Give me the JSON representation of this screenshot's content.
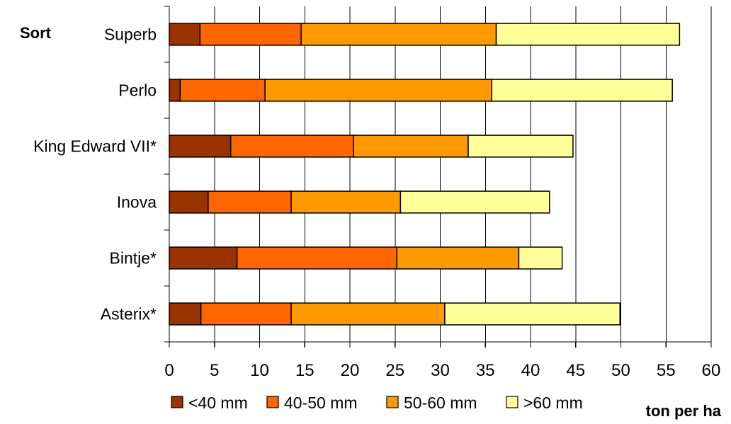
{
  "chart_data": {
    "type": "bar",
    "orientation": "horizontal",
    "stacked": true,
    "ylabel": "Sort",
    "xlabel": "ton per ha",
    "xlim": [
      0,
      60
    ],
    "xticks": [
      "0",
      "5",
      "10",
      "15",
      "20",
      "25",
      "30",
      "35",
      "40",
      "45",
      "50",
      "55",
      "60"
    ],
    "categories": [
      "Superb",
      "Perlo",
      "King Edward VII*",
      "Inova",
      "Bintje*",
      "Asterix*"
    ],
    "series": [
      {
        "name": "<40 mm",
        "color": "#993300",
        "values": [
          3.4,
          1.2,
          6.8,
          4.3,
          7.5,
          3.5
        ]
      },
      {
        "name": "40-50 mm",
        "color": "#ff6600",
        "values": [
          11.2,
          9.4,
          13.6,
          9.2,
          17.7,
          10.0
        ]
      },
      {
        "name": "50-60 mm",
        "color": "#ff9900",
        "values": [
          21.6,
          25.1,
          12.7,
          12.1,
          13.5,
          17.0
        ]
      },
      {
        "name": ">60 mm",
        "color": "#ffff99",
        "values": [
          20.3,
          20.0,
          11.6,
          16.5,
          4.8,
          19.4
        ]
      }
    ],
    "grid": true,
    "legend": "bottom"
  }
}
